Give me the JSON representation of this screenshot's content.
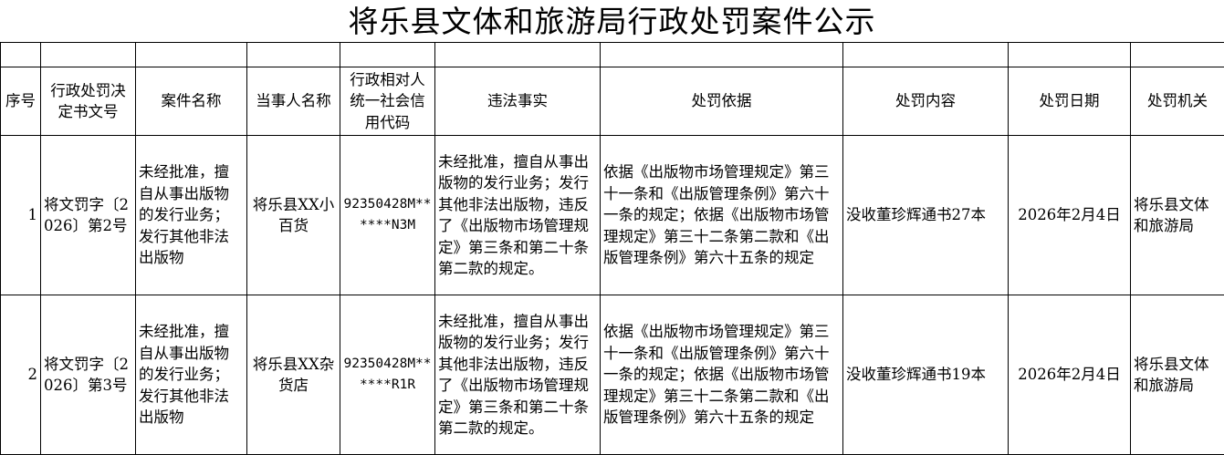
{
  "title": "将乐县文体和旅游局行政处罚案件公示",
  "headers": [
    "序号",
    "行政处罚决定书文号",
    "案件名称",
    "当事人名称",
    "行政相对人统一社会信用代码",
    "违法事实",
    "处罚依据",
    "处罚内容",
    "处罚日期",
    "处罚机关"
  ],
  "rows": [
    {
      "no": "1",
      "doc_no": "将文罚字〔2026〕第2号",
      "case_name": "未经批准，擅自从事出版物的发行业务；发行其他非法出版物",
      "party": "将乐县XX小百货",
      "credit_code": "92350428M******N3M",
      "facts": "未经批准，擅自从事出版物的发行业务；发行其他非法出版物，违反了《出版物市场管理规定》第三条和第二十条第二款的规定。",
      "basis": "依据《出版物市场管理规定》第三十一条和《出版管理条例》第六十一条的规定；依据《出版物市场管理规定》第三十二条第二款和《出版管理条例》第六十五条的规定",
      "penalty": "没收董珍辉通书27本",
      "date": "2026年2月4日",
      "authority": "将乐县文体和旅游局"
    },
    {
      "no": "2",
      "doc_no": "将文罚字〔2026〕第3号",
      "case_name": "未经批准，擅自从事出版物的发行业务；发行其他非法出版物",
      "party": "将乐县XX杂货店",
      "credit_code": "92350428M******R1R",
      "facts": "未经批准，擅自从事出版物的发行业务；发行其他非法出版物，违反了《出版物市场管理规定》第三条和第二十条第二款的规定。",
      "basis": "依据《出版物市场管理规定》第三十一条和《出版管理条例》第六十一条的规定；依据《出版物市场管理规定》第三十二条第二款和《出版管理条例》第六十五条的规定",
      "penalty": "没收董珍辉通书19本",
      "date": "2026年2月4日",
      "authority": "将乐县文体和旅游局"
    }
  ]
}
